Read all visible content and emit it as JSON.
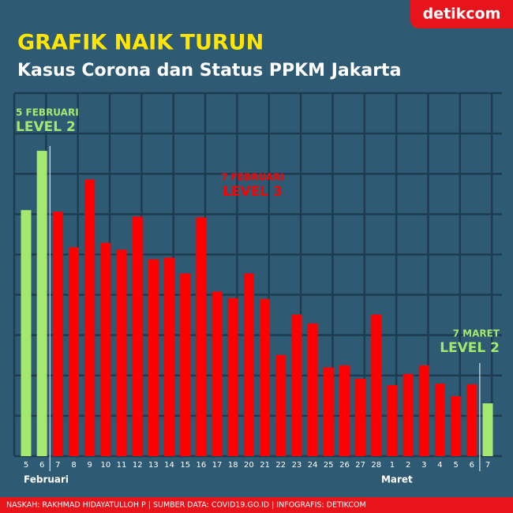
{
  "chart_data": {
    "type": "bar",
    "logo": "detikcom",
    "title": "GRAFIK NAIK TURUN",
    "subtitle": "Kasus Corona dan Status PPKM Jakarta",
    "categories": [
      "5",
      "6",
      "7",
      "8",
      "9",
      "10",
      "11",
      "12",
      "13",
      "14",
      "15",
      "16",
      "17",
      "18",
      "20",
      "21",
      "22",
      "23",
      "24",
      "25",
      "26",
      "27",
      "28",
      "1",
      "2",
      "3",
      "4",
      "5",
      "6",
      "7"
    ],
    "values": [
      6.1,
      7.57,
      6.06,
      5.18,
      6.86,
      5.29,
      5.12,
      5.94,
      4.88,
      4.92,
      4.53,
      5.92,
      4.08,
      3.92,
      4.53,
      3.9,
      2.51,
      3.51,
      3.29,
      2.2,
      2.25,
      1.92,
      3.51,
      1.76,
      2.04,
      2.25,
      1.8,
      1.49,
      1.78,
      1.31
    ],
    "colors": [
      "#a5e86f",
      "#a5e86f",
      "#ff0000",
      "#ff0000",
      "#ff0000",
      "#ff0000",
      "#ff0000",
      "#ff0000",
      "#ff0000",
      "#ff0000",
      "#ff0000",
      "#ff0000",
      "#ff0000",
      "#ff0000",
      "#ff0000",
      "#ff0000",
      "#ff0000",
      "#ff0000",
      "#ff0000",
      "#ff0000",
      "#ff0000",
      "#ff0000",
      "#ff0000",
      "#ff0000",
      "#ff0000",
      "#ff0000",
      "#ff0000",
      "#ff0000",
      "#ff0000",
      "#a5e86f"
    ],
    "ylim": [
      0,
      9
    ],
    "yticks": [
      0,
      1,
      2,
      3,
      4,
      5,
      6,
      7,
      8,
      9
    ],
    "grid": true,
    "months": [
      "Februari",
      "Maret"
    ],
    "annotations": [
      {
        "date": "5 FEBRUARI",
        "level": "LEVEL 2",
        "color": "#a5e86f"
      },
      {
        "date": "7 FEBRUARI",
        "level": "LEVEL 3",
        "color": "#ff0000"
      },
      {
        "date": "7 MARET",
        "level": "LEVEL 2",
        "color": "#a5e86f"
      }
    ],
    "source": "NASKAH: RAKHMAD HIDAYATULLOH P | SUMBER DATA: COVID19.GO.ID | INFOGRAFIS: DETIKCOM"
  }
}
